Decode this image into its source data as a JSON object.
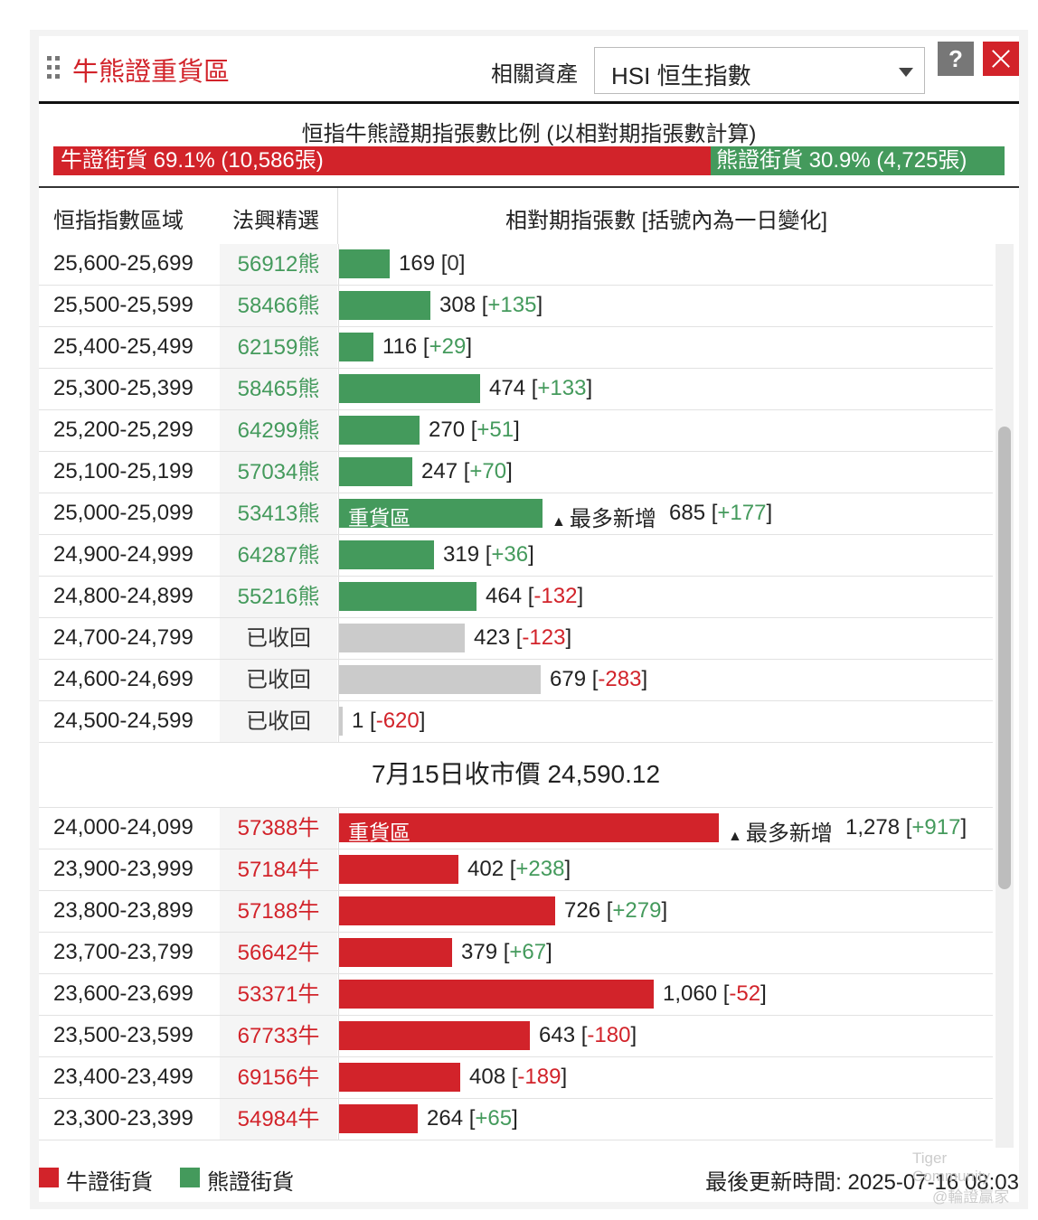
{
  "header": {
    "title": "牛熊證重貨區",
    "related_label": "相關資產",
    "asset_value": "HSI 恒生指數",
    "help_label": "?"
  },
  "ratio": {
    "title": "恒指牛熊證期指張數比例 (以相對期指張數計算)",
    "bull_label": "牛證街貨 69.1% (10,586張)",
    "bear_label": "熊證街貨 30.9% (4,725張)",
    "bull_fraction": 0.691
  },
  "table": {
    "col_range": "恒指指數區域",
    "col_code": "法興精選",
    "col_count": "相對期指張數 [括號內為一日變化]",
    "heavy_label": "重貨區",
    "most_label": "最多新增",
    "bear_rows": [
      {
        "range": "25,600-25,699",
        "code": "56912熊",
        "count": 169,
        "count_label": "169",
        "change": "0",
        "heavy": false,
        "most": false
      },
      {
        "range": "25,500-25,599",
        "code": "58466熊",
        "count": 308,
        "count_label": "308",
        "change": "+135",
        "heavy": false,
        "most": false
      },
      {
        "range": "25,400-25,499",
        "code": "62159熊",
        "count": 116,
        "count_label": "116",
        "change": "+29",
        "heavy": false,
        "most": false
      },
      {
        "range": "25,300-25,399",
        "code": "58465熊",
        "count": 474,
        "count_label": "474",
        "change": "+133",
        "heavy": false,
        "most": false
      },
      {
        "range": "25,200-25,299",
        "code": "64299熊",
        "count": 270,
        "count_label": "270",
        "change": "+51",
        "heavy": false,
        "most": false
      },
      {
        "range": "25,100-25,199",
        "code": "57034熊",
        "count": 247,
        "count_label": "247",
        "change": "+70",
        "heavy": false,
        "most": false
      },
      {
        "range": "25,000-25,099",
        "code": "53413熊",
        "count": 685,
        "count_label": "685",
        "change": "+177",
        "heavy": true,
        "most": true
      },
      {
        "range": "24,900-24,999",
        "code": "64287熊",
        "count": 319,
        "count_label": "319",
        "change": "+36",
        "heavy": false,
        "most": false
      },
      {
        "range": "24,800-24,899",
        "code": "55216熊",
        "count": 464,
        "count_label": "464",
        "change": "-132",
        "heavy": false,
        "most": false
      },
      {
        "range": "24,700-24,799",
        "code": "已收回",
        "count": 423,
        "count_label": "423",
        "change": "-123",
        "heavy": false,
        "most": false,
        "recalled": true
      },
      {
        "range": "24,600-24,699",
        "code": "已收回",
        "count": 679,
        "count_label": "679",
        "change": "-283",
        "heavy": false,
        "most": false,
        "recalled": true
      },
      {
        "range": "24,500-24,599",
        "code": "已收回",
        "count": 1,
        "count_label": "1",
        "change": "-620",
        "heavy": false,
        "most": false,
        "recalled": true
      }
    ],
    "close_text": "7月15日收市價 24,590.12",
    "bull_rows": [
      {
        "range": "24,000-24,099",
        "code": "57388牛",
        "count": 1278,
        "count_label": "1,278",
        "change": "+917",
        "heavy": true,
        "most": true
      },
      {
        "range": "23,900-23,999",
        "code": "57184牛",
        "count": 402,
        "count_label": "402",
        "change": "+238",
        "heavy": false,
        "most": false
      },
      {
        "range": "23,800-23,899",
        "code": "57188牛",
        "count": 726,
        "count_label": "726",
        "change": "+279",
        "heavy": false,
        "most": false
      },
      {
        "range": "23,700-23,799",
        "code": "56642牛",
        "count": 379,
        "count_label": "379",
        "change": "+67",
        "heavy": false,
        "most": false
      },
      {
        "range": "23,600-23,699",
        "code": "53371牛",
        "count": 1060,
        "count_label": "1,060",
        "change": "-52",
        "heavy": false,
        "most": false
      },
      {
        "range": "23,500-23,599",
        "code": "67733牛",
        "count": 643,
        "count_label": "643",
        "change": "-180",
        "heavy": false,
        "most": false
      },
      {
        "range": "23,400-23,499",
        "code": "69156牛",
        "count": 408,
        "count_label": "408",
        "change": "-189",
        "heavy": false,
        "most": false
      },
      {
        "range": "23,300-23,399",
        "code": "54984牛",
        "count": 264,
        "count_label": "264",
        "change": "+65",
        "heavy": false,
        "most": false
      }
    ]
  },
  "footer": {
    "legend_bull": "牛證街貨",
    "legend_bear": "熊證街貨",
    "updated": "最後更新時間: 2025-07-16 08:03",
    "watermark_1": "Tiger Community",
    "watermark_2": "@輪證贏家"
  },
  "colors": {
    "bull": "#d2232a",
    "bear": "#449a5c",
    "recalled": "#cbcbcb",
    "highlight": "#e8901a"
  }
}
